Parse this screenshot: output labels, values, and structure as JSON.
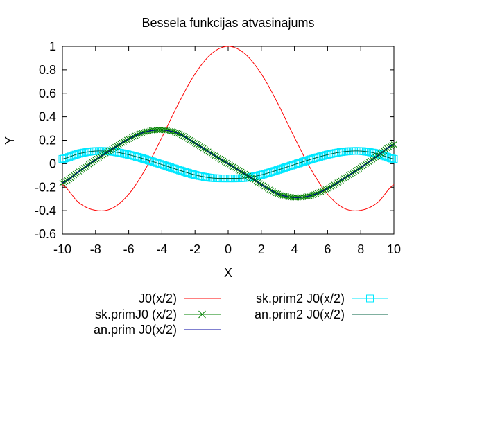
{
  "chart_data": {
    "type": "line",
    "title": "Bessela funkcijas atvasinajums",
    "xlabel": "X",
    "ylabel": "Y",
    "xlim": [
      -10,
      10
    ],
    "ylim": [
      -0.6,
      1
    ],
    "xticks": [
      "-10",
      "-8",
      "-6",
      "-4",
      "-2",
      "0",
      "2",
      "4",
      "6",
      "8",
      "10"
    ],
    "yticks": [
      "-0.6",
      "-0.4",
      "-0.2",
      "0",
      "0.2",
      "0.4",
      "0.6",
      "0.8",
      "1"
    ],
    "grid": false,
    "legend_position": "bottom",
    "x": [
      -10,
      -9,
      -8,
      -7,
      -6,
      -5,
      -4,
      -3,
      -2,
      -1,
      0,
      1,
      2,
      3,
      4,
      5,
      6,
      7,
      8,
      9,
      10
    ],
    "series": [
      {
        "name": "J0(x/2)",
        "color": "#ff0000",
        "style": "line",
        "values": [
          -0.178,
          -0.333,
          -0.397,
          -0.38,
          -0.26,
          -0.048,
          0.224,
          0.512,
          0.765,
          0.938,
          1.0,
          0.938,
          0.765,
          0.512,
          0.224,
          -0.048,
          -0.26,
          -0.38,
          -0.397,
          -0.333,
          -0.178
        ]
      },
      {
        "name": "sk.primJ0 (x/2)",
        "color": "#008000",
        "style": "linepoints",
        "marker": "x",
        "values": [
          -0.164,
          -0.066,
          0.033,
          0.125,
          0.211,
          0.271,
          0.288,
          0.257,
          0.176,
          0.086,
          0.0,
          -0.086,
          -0.176,
          -0.257,
          -0.288,
          -0.271,
          -0.211,
          -0.125,
          -0.033,
          0.066,
          0.164
        ]
      },
      {
        "name": "an.prim J0(x/2)",
        "color": "#0000a0",
        "style": "line",
        "values": [
          -0.164,
          -0.066,
          0.033,
          0.125,
          0.211,
          0.271,
          0.288,
          0.257,
          0.176,
          0.086,
          0.0,
          -0.086,
          -0.176,
          -0.257,
          -0.288,
          -0.271,
          -0.211,
          -0.125,
          -0.033,
          0.066,
          0.164
        ]
      },
      {
        "name": "sk.prim2 J0(x/2)",
        "color": "#00e8ff",
        "style": "linepoints",
        "marker": "square",
        "values": [
          0.041,
          0.086,
          0.108,
          0.103,
          0.077,
          0.038,
          -0.007,
          -0.053,
          -0.095,
          -0.121,
          -0.125,
          -0.121,
          -0.095,
          -0.053,
          -0.007,
          0.038,
          0.077,
          0.103,
          0.108,
          0.086,
          0.041
        ]
      },
      {
        "name": "an.prim2 J0(x/2)",
        "color": "#006040",
        "style": "line",
        "values": [
          0.041,
          0.086,
          0.108,
          0.103,
          0.077,
          0.038,
          -0.007,
          -0.053,
          -0.095,
          -0.121,
          -0.125,
          -0.121,
          -0.095,
          -0.053,
          -0.007,
          0.038,
          0.077,
          0.103,
          0.108,
          0.086,
          0.041
        ]
      }
    ]
  }
}
